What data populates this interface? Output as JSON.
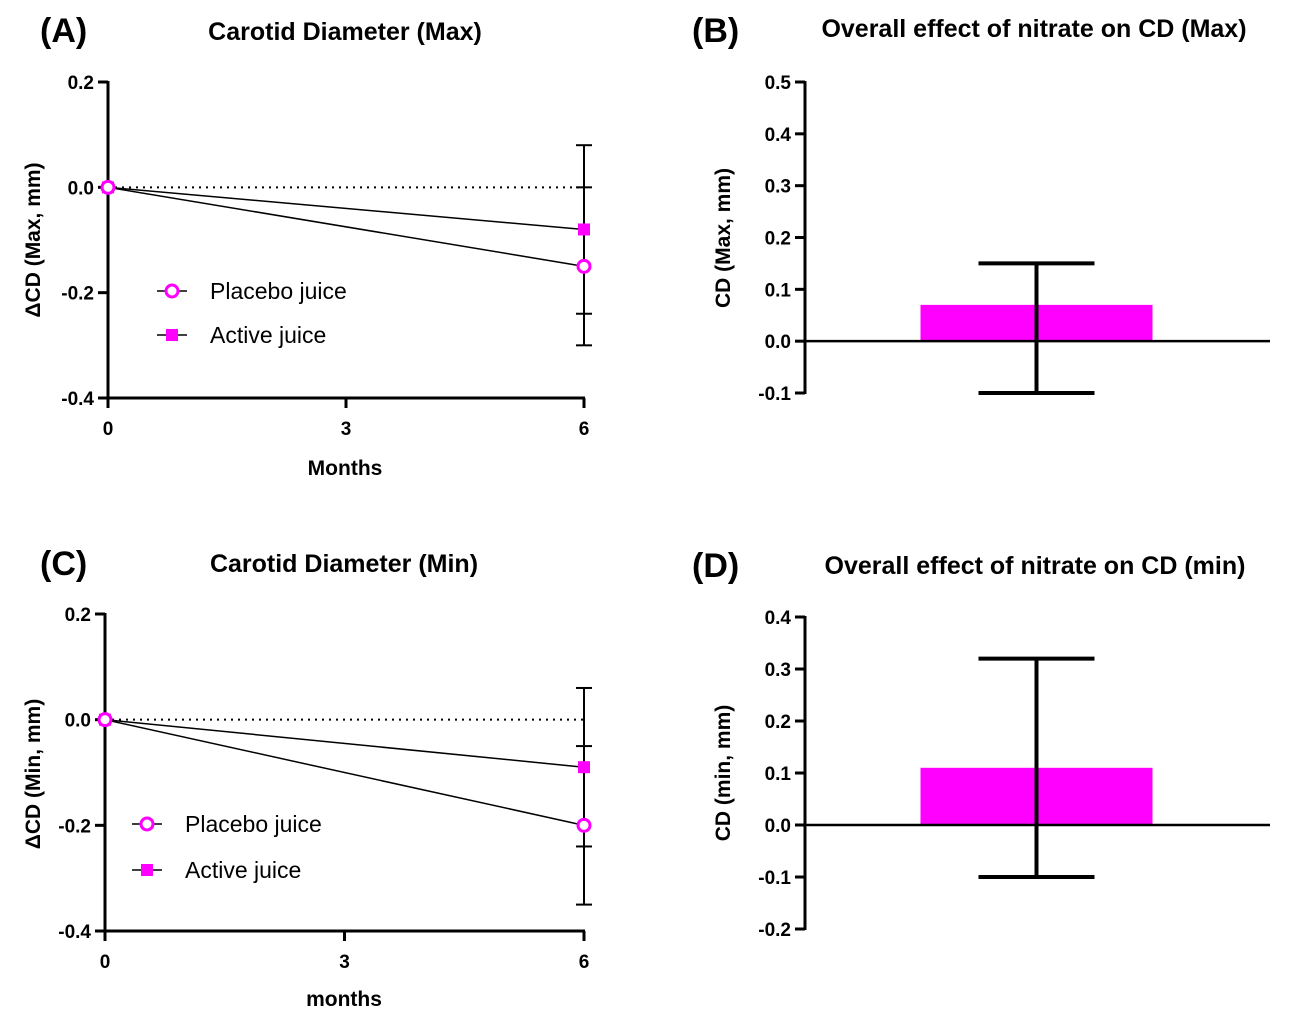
{
  "colors": {
    "series": "#ff00ff",
    "axis": "#000000"
  },
  "chart_data": [
    {
      "panel": "(A)",
      "title": "Carotid Diameter (Max)",
      "type": "line",
      "xlabel": "Months",
      "ylabel": "ΔCD (Max, mm)",
      "xlim": [
        0,
        6
      ],
      "ylim": [
        -0.4,
        0.2
      ],
      "xticks": [
        "0",
        "3",
        "6"
      ],
      "yticks": [
        "0.2",
        "0.0",
        "-0.2",
        "-0.4"
      ],
      "reference_line": 0,
      "legend_position": "middle-left",
      "series": [
        {
          "name": "Placebo juice",
          "marker": "open-circle",
          "x": [
            0,
            6
          ],
          "y": [
            0,
            -0.15
          ],
          "err": [
            0,
            0.15
          ]
        },
        {
          "name": "Active juice",
          "marker": "filled-square",
          "x": [
            0,
            6
          ],
          "y": [
            0,
            -0.08
          ],
          "err": [
            0,
            0.16
          ]
        }
      ]
    },
    {
      "panel": "(B)",
      "title": "Overall effect of nitrate on CD (Max)",
      "type": "bar",
      "ylabel": "CD (Max, mm)",
      "ylim": [
        -0.1,
        0.5
      ],
      "yticks": [
        "0.5",
        "0.4",
        "0.3",
        "0.2",
        "0.1",
        "0.0",
        "-0.1"
      ],
      "values": [
        0.07
      ],
      "ci": [
        -0.1,
        0.15
      ]
    },
    {
      "panel": "(C)",
      "title": "Carotid Diameter (Min)",
      "type": "line",
      "xlabel": "months",
      "ylabel": "ΔCD (Min, mm)",
      "xlim": [
        0,
        6
      ],
      "ylim": [
        -0.4,
        0.2
      ],
      "xticks": [
        "0",
        "3",
        "6"
      ],
      "yticks": [
        "0.2",
        "0.0",
        "-0.2",
        "-0.4"
      ],
      "reference_line": 0,
      "legend_position": "lower-left",
      "series": [
        {
          "name": "Placebo juice",
          "marker": "open-circle",
          "x": [
            0,
            6
          ],
          "y": [
            0,
            -0.2
          ],
          "err": [
            0,
            0.15
          ]
        },
        {
          "name": "Active juice",
          "marker": "filled-square",
          "x": [
            0,
            6
          ],
          "y": [
            0,
            -0.09
          ],
          "err": [
            0,
            0.15
          ]
        }
      ]
    },
    {
      "panel": "(D)",
      "title": "Overall effect of nitrate on CD (min)",
      "type": "bar",
      "ylabel": "CD (min, mm)",
      "ylim": [
        -0.2,
        0.4
      ],
      "yticks": [
        "0.4",
        "0.3",
        "0.2",
        "0.1",
        "0.0",
        "-0.1",
        "-0.2"
      ],
      "values": [
        0.11
      ],
      "ci": [
        -0.1,
        0.32
      ]
    }
  ]
}
